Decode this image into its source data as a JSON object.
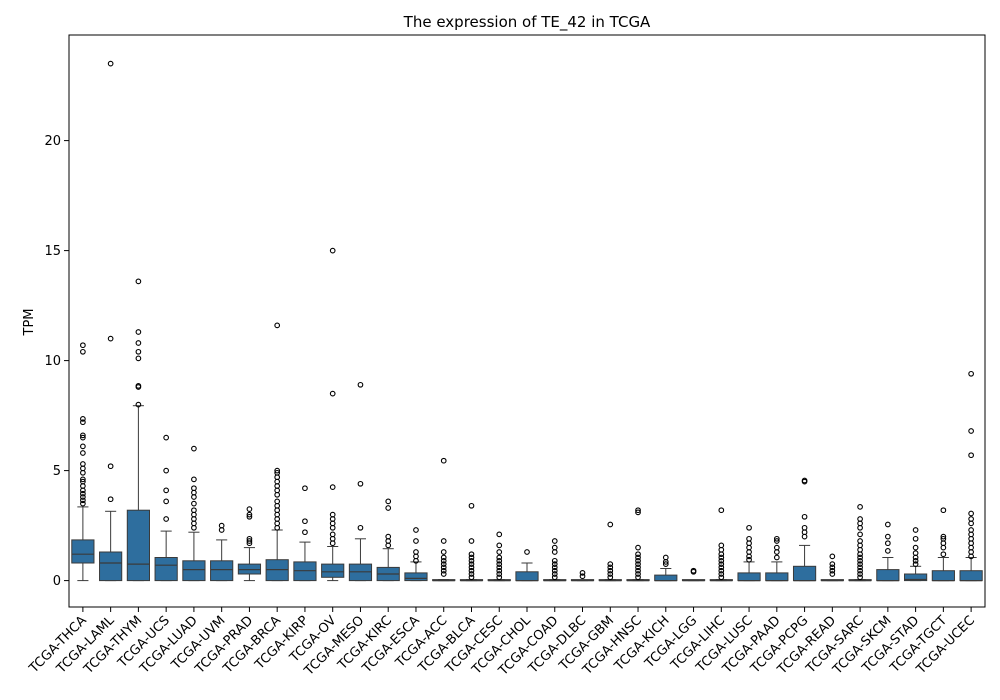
{
  "chart_data": {
    "type": "box",
    "title": "The expression of TE_42 in TCGA",
    "xlabel": "",
    "ylabel": "TPM",
    "ylim": [
      -1.2,
      24.8
    ],
    "yticks": [
      0,
      5,
      10,
      15,
      20
    ],
    "grid": false,
    "box_color": "#2e6e9e",
    "categories": [
      "TCGA-THCA",
      "TCGA-LAML",
      "TCGA-THYM",
      "TCGA-UCS",
      "TCGA-LUAD",
      "TCGA-UVM",
      "TCGA-PRAD",
      "TCGA-BRCA",
      "TCGA-KIRP",
      "TCGA-OV",
      "TCGA-MESO",
      "TCGA-KIRC",
      "TCGA-ESCA",
      "TCGA-ACC",
      "TCGA-BLCA",
      "TCGA-CESC",
      "TCGA-CHOL",
      "TCGA-COAD",
      "TCGA-DLBC",
      "TCGA-GBM",
      "TCGA-HNSC",
      "TCGA-KICH",
      "TCGA-LGG",
      "TCGA-LIHC",
      "TCGA-LUSC",
      "TCGA-PAAD",
      "TCGA-PCPG",
      "TCGA-READ",
      "TCGA-SARC",
      "TCGA-SKCM",
      "TCGA-STAD",
      "TCGA-TGCT",
      "TCGA-UCEC"
    ],
    "boxes": [
      {
        "whislo": 0,
        "q1": 0.8,
        "med": 1.2,
        "q3": 1.85,
        "whishi": 3.35,
        "fliers": [
          3.5,
          3.65,
          3.8,
          3.95,
          4.1,
          4.3,
          4.5,
          4.6,
          4.9,
          5.1,
          5.3,
          5.8,
          6.1,
          6.5,
          6.6,
          7.2,
          7.35,
          10.4,
          10.7
        ]
      },
      {
        "whislo": 0,
        "q1": 0,
        "med": 0.8,
        "q3": 1.3,
        "whishi": 3.15,
        "fliers": [
          3.7,
          5.2,
          11.0,
          23.5
        ]
      },
      {
        "whislo": 0,
        "q1": 0,
        "med": 0.75,
        "q3": 3.2,
        "whishi": 7.95,
        "fliers": [
          8.0,
          8.8,
          8.85,
          10.1,
          10.4,
          10.8,
          11.3,
          13.6
        ]
      },
      {
        "whislo": 0,
        "q1": 0,
        "med": 0.7,
        "q3": 1.05,
        "whishi": 2.25,
        "fliers": [
          2.8,
          3.6,
          4.1,
          5.0,
          6.5
        ]
      },
      {
        "whislo": 0,
        "q1": 0,
        "med": 0.5,
        "q3": 0.9,
        "whishi": 2.2,
        "fliers": [
          2.4,
          2.6,
          2.8,
          3.0,
          3.2,
          3.5,
          3.8,
          4.0,
          4.2,
          4.6,
          6.0
        ]
      },
      {
        "whislo": 0,
        "q1": 0,
        "med": 0.5,
        "q3": 0.9,
        "whishi": 1.85,
        "fliers": [
          2.3,
          2.5
        ]
      },
      {
        "whislo": 0,
        "q1": 0.3,
        "med": 0.5,
        "q3": 0.75,
        "whishi": 1.5,
        "fliers": [
          1.7,
          1.8,
          1.9,
          2.9,
          3.0,
          3.25
        ]
      },
      {
        "whislo": 0,
        "q1": 0,
        "med": 0.5,
        "q3": 0.95,
        "whishi": 2.3,
        "fliers": [
          2.4,
          2.6,
          2.8,
          3.0,
          3.2,
          3.4,
          3.6,
          3.9,
          4.1,
          4.3,
          4.5,
          4.7,
          4.9,
          5.0,
          11.6
        ]
      },
      {
        "whislo": 0,
        "q1": 0,
        "med": 0.45,
        "q3": 0.85,
        "whishi": 1.75,
        "fliers": [
          2.2,
          2.7,
          4.2
        ]
      },
      {
        "whislo": 0,
        "q1": 0.15,
        "med": 0.4,
        "q3": 0.75,
        "whishi": 1.55,
        "fliers": [
          1.7,
          1.9,
          2.1,
          2.4,
          2.6,
          2.8,
          3.0,
          4.25,
          8.5,
          15.0
        ]
      },
      {
        "whislo": 0,
        "q1": 0,
        "med": 0.4,
        "q3": 0.75,
        "whishi": 1.9,
        "fliers": [
          2.4,
          4.4,
          8.9
        ]
      },
      {
        "whislo": 0,
        "q1": 0,
        "med": 0.3,
        "q3": 0.6,
        "whishi": 1.45,
        "fliers": [
          1.6,
          1.8,
          2.0,
          3.3,
          3.6
        ]
      },
      {
        "whislo": 0,
        "q1": 0,
        "med": 0.1,
        "q3": 0.35,
        "whishi": 0.85,
        "fliers": [
          0.9,
          1.1,
          1.3,
          1.8,
          2.3
        ]
      },
      {
        "whislo": 0,
        "q1": 0,
        "med": 0,
        "q3": 0.02,
        "whishi": 0.05,
        "fliers": [
          0.3,
          0.45,
          0.6,
          0.75,
          0.9,
          1.05,
          1.3,
          1.8,
          5.45
        ]
      },
      {
        "whislo": 0,
        "q1": 0,
        "med": 0,
        "q3": 0.02,
        "whishi": 0.05,
        "fliers": [
          0.15,
          0.3,
          0.45,
          0.6,
          0.75,
          0.9,
          1.05,
          1.2,
          1.8,
          3.4
        ]
      },
      {
        "whislo": 0,
        "q1": 0,
        "med": 0,
        "q3": 0.02,
        "whishi": 0.05,
        "fliers": [
          0.15,
          0.3,
          0.45,
          0.6,
          0.75,
          0.9,
          1.05,
          1.3,
          1.6,
          2.1
        ]
      },
      {
        "whislo": 0,
        "q1": 0,
        "med": 0,
        "q3": 0.4,
        "whishi": 0.8,
        "fliers": [
          1.3
        ]
      },
      {
        "whislo": 0,
        "q1": 0,
        "med": 0,
        "q3": 0.02,
        "whishi": 0.05,
        "fliers": [
          0.15,
          0.3,
          0.45,
          0.6,
          0.75,
          0.9,
          1.3,
          1.5,
          1.8
        ]
      },
      {
        "whislo": 0,
        "q1": 0,
        "med": 0,
        "q3": 0.01,
        "whishi": 0.02,
        "fliers": [
          0.2,
          0.35
        ]
      },
      {
        "whislo": 0,
        "q1": 0,
        "med": 0,
        "q3": 0.02,
        "whishi": 0.05,
        "fliers": [
          0.15,
          0.3,
          0.45,
          0.6,
          0.75,
          2.55
        ]
      },
      {
        "whislo": 0,
        "q1": 0,
        "med": 0,
        "q3": 0.02,
        "whishi": 0.05,
        "fliers": [
          0.15,
          0.3,
          0.45,
          0.6,
          0.75,
          0.9,
          1.05,
          1.2,
          1.5,
          3.1,
          3.2
        ]
      },
      {
        "whislo": 0,
        "q1": 0,
        "med": 0,
        "q3": 0.25,
        "whishi": 0.55,
        "fliers": [
          0.75,
          0.85,
          1.05
        ]
      },
      {
        "whislo": 0,
        "q1": 0,
        "med": 0,
        "q3": 0.01,
        "whishi": 0.02,
        "fliers": [
          0.4,
          0.45
        ]
      },
      {
        "whislo": 0,
        "q1": 0,
        "med": 0,
        "q3": 0.02,
        "whishi": 0.05,
        "fliers": [
          0.15,
          0.3,
          0.45,
          0.6,
          0.75,
          0.9,
          1.05,
          1.2,
          1.4,
          1.6,
          3.2
        ]
      },
      {
        "whislo": 0,
        "q1": 0,
        "med": 0,
        "q3": 0.35,
        "whishi": 0.85,
        "fliers": [
          0.95,
          1.1,
          1.3,
          1.5,
          1.7,
          1.9,
          2.4
        ]
      },
      {
        "whislo": 0,
        "q1": 0,
        "med": 0,
        "q3": 0.35,
        "whishi": 0.85,
        "fliers": [
          1.05,
          1.3,
          1.5,
          1.8,
          1.9
        ]
      },
      {
        "whislo": 0,
        "q1": 0,
        "med": 0,
        "q3": 0.65,
        "whishi": 1.6,
        "fliers": [
          2.0,
          2.2,
          2.4,
          2.9,
          4.5,
          4.55
        ]
      },
      {
        "whislo": 0,
        "q1": 0,
        "med": 0,
        "q3": 0.01,
        "whishi": 0.02,
        "fliers": [
          0.3,
          0.45,
          0.6,
          0.75,
          1.1
        ]
      },
      {
        "whislo": 0,
        "q1": 0,
        "med": 0,
        "q3": 0.02,
        "whishi": 0.05,
        "fliers": [
          0.15,
          0.3,
          0.45,
          0.6,
          0.75,
          0.9,
          1.05,
          1.2,
          1.4,
          1.6,
          1.8,
          2.1,
          2.4,
          2.6,
          2.8,
          3.35
        ]
      },
      {
        "whislo": 0,
        "q1": 0,
        "med": 0,
        "q3": 0.5,
        "whishi": 1.05,
        "fliers": [
          1.35,
          1.7,
          2.0,
          2.55
        ]
      },
      {
        "whislo": 0,
        "q1": 0,
        "med": 0.05,
        "q3": 0.3,
        "whishi": 0.65,
        "fliers": [
          0.75,
          0.9,
          1.05,
          1.25,
          1.5,
          1.9,
          2.3
        ]
      },
      {
        "whislo": 0,
        "q1": 0,
        "med": 0,
        "q3": 0.45,
        "whishi": 1.05,
        "fliers": [
          1.2,
          1.5,
          1.7,
          1.9,
          2.0,
          3.2
        ]
      },
      {
        "whislo": 0,
        "q1": 0,
        "med": 0,
        "q3": 0.45,
        "whishi": 1.05,
        "fliers": [
          1.1,
          1.3,
          1.5,
          1.7,
          1.9,
          2.1,
          2.3,
          2.6,
          2.8,
          3.05,
          5.7,
          6.8,
          9.4
        ]
      }
    ]
  }
}
